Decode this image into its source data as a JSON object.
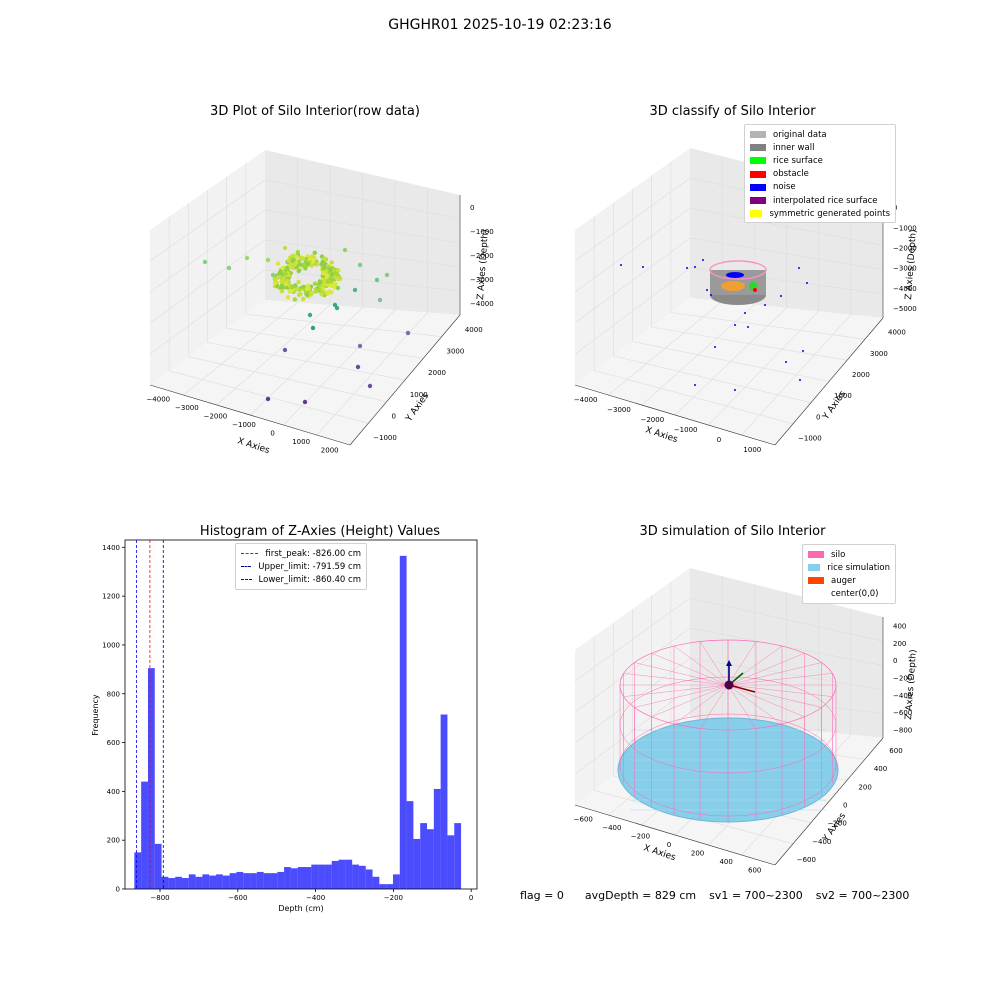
{
  "figure": {
    "suptitle": "GHGHR01 2025-10-19 02:23:16"
  },
  "panels": {
    "raw": {
      "title": "3D Plot of Silo Interior(row data)",
      "xlabel": "X Axies",
      "ylabel": "Y Axies",
      "zlabel": "Z Axies (Depth)",
      "xticks": [
        "−4000",
        "−3000",
        "−2000",
        "−1000",
        "0",
        "1000",
        "2000"
      ],
      "yticks": [
        "−1000",
        "0",
        "1000",
        "2000",
        "3000",
        "4000"
      ],
      "zticks": [
        "0",
        "−1000",
        "−2000",
        "−3000",
        "−4000"
      ]
    },
    "classify": {
      "title": "3D classify of Silo Interior",
      "xlabel": "X Axies",
      "ylabel": "Y Axies",
      "zlabel": "Z Axies (Depth)",
      "xticks": [
        "−4000",
        "−3000",
        "−2000",
        "−1000",
        "0",
        "1000"
      ],
      "yticks": [
        "−1000",
        "0",
        "1000",
        "2000",
        "3000",
        "4000"
      ],
      "zticks": [
        "0",
        "−1000",
        "−2000",
        "−3000",
        "−4000",
        "−5000"
      ],
      "legend": [
        {
          "label": "original data",
          "color": "#b3b3b3"
        },
        {
          "label": "inner wall",
          "color": "#808080"
        },
        {
          "label": "rice surface",
          "color": "#00ff00"
        },
        {
          "label": "obstacle",
          "color": "#ff0000"
        },
        {
          "label": "noise",
          "color": "#0000ff"
        },
        {
          "label": "interpolated rice surface",
          "color": "#800080"
        },
        {
          "label": "symmetric generated points",
          "color": "#ffff00"
        }
      ]
    },
    "simulation": {
      "title": "3D simulation of Silo Interior",
      "xlabel": "X Axies",
      "ylabel": "Y Axies",
      "zlabel": "Z Axies (Depth)",
      "xticks": [
        "−600",
        "−400",
        "−200",
        "0",
        "200",
        "400",
        "600"
      ],
      "yticks": [
        "−600",
        "−400",
        "−200",
        "0",
        "200",
        "400",
        "600"
      ],
      "zticks": [
        "400",
        "200",
        "0",
        "−200",
        "−400",
        "−600",
        "−800"
      ],
      "legend": [
        {
          "label": "silo",
          "color": "#ff69b4"
        },
        {
          "label": "rice simulation",
          "color": "#87ceeb"
        },
        {
          "label": "auger",
          "color": "#ff4500"
        },
        {
          "label": "center(0,0)",
          "color": "#ffffff"
        }
      ]
    }
  },
  "chart_data": [
    {
      "type": "scatter",
      "title": "3D Plot of Silo Interior(row data)",
      "xlabel": "X Axies",
      "ylabel": "Y Axies",
      "zlabel": "Z Axies (Depth)",
      "xlim": [
        -4000,
        2000
      ],
      "ylim": [
        -1000,
        4000
      ],
      "zlim": [
        -4500,
        0
      ]
    },
    {
      "type": "scatter",
      "title": "3D classify of Silo Interior",
      "xlabel": "X Axies",
      "ylabel": "Y Axies",
      "zlabel": "Z Axies (Depth)",
      "xlim": [
        -4000,
        1500
      ],
      "ylim": [
        -1000,
        4000
      ],
      "zlim": [
        -5000,
        0
      ],
      "series": [
        {
          "name": "original data"
        },
        {
          "name": "inner wall"
        },
        {
          "name": "rice surface"
        },
        {
          "name": "obstacle"
        },
        {
          "name": "noise"
        },
        {
          "name": "interpolated rice surface"
        },
        {
          "name": "symmetric generated points"
        }
      ]
    },
    {
      "type": "bar",
      "title": "Histogram of Z-Axies (Height) Values",
      "xlabel": "Depth (cm)",
      "ylabel": "Frequency",
      "xlim": [
        -890,
        15
      ],
      "ylim": [
        0,
        1430
      ],
      "xticks": [
        -800,
        -600,
        -400,
        -200,
        0
      ],
      "yticks": [
        0,
        200,
        400,
        600,
        800,
        1000,
        1200,
        1400
      ],
      "bin_width": 17.5,
      "bin_start": -866,
      "values": [
        150,
        440,
        905,
        185,
        50,
        45,
        50,
        45,
        60,
        50,
        60,
        55,
        60,
        55,
        65,
        70,
        65,
        65,
        70,
        65,
        65,
        70,
        90,
        85,
        90,
        90,
        100,
        100,
        100,
        115,
        120,
        120,
        100,
        95,
        80,
        50,
        20,
        20,
        60,
        1365,
        360,
        205,
        270,
        245,
        410,
        715,
        220,
        270
      ],
      "color": "#0000ff",
      "lines": [
        {
          "label": "first_peak: -826.00 cm",
          "x": -826.0,
          "color": "#ff0000"
        },
        {
          "label": "Upper_limit: -791.59 cm",
          "x": -791.59,
          "color": "#00008b"
        },
        {
          "label": "Lower_limit: -860.40 cm",
          "x": -860.4,
          "color": "#0000ff"
        }
      ]
    },
    {
      "type": "scatter",
      "title": "3D simulation of Silo Interior",
      "xlabel": "X Axies",
      "ylabel": "Y Axies",
      "zlabel": "Z Axies (Depth)",
      "xlim": [
        -700,
        700
      ],
      "ylim": [
        -700,
        700
      ],
      "zlim": [
        -900,
        450
      ],
      "series": [
        {
          "name": "silo"
        },
        {
          "name": "rice simulation"
        },
        {
          "name": "auger"
        },
        {
          "name": "center(0,0)"
        }
      ]
    }
  ],
  "status": {
    "flag": "flag = 0",
    "avg_depth": "avgDepth = 829 cm",
    "sv1": "sv1 = 700~2300",
    "sv2": "sv2 = 700~2300"
  }
}
